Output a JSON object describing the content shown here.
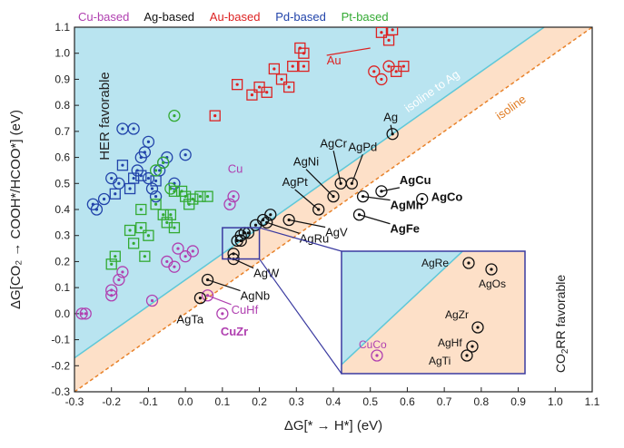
{
  "chart_data": {
    "type": "scatter",
    "xlabel": "ΔG[* → H*] (eV)",
    "ylabel": "ΔG[CO₂ → COOH*/HCOO*] (eV)",
    "xlim": [
      -0.3,
      1.1
    ],
    "ylim": [
      -0.3,
      1.1
    ],
    "xticks": [
      "-0.3",
      "-0.2",
      "-0.1",
      "0.0",
      "0.1",
      "0.2",
      "0.3",
      "0.4",
      "0.5",
      "0.6",
      "0.7",
      "0.8",
      "0.9",
      "1.0",
      "1.1"
    ],
    "yticks": [
      "-0.3",
      "-0.2",
      "-0.1",
      "0.0",
      "0.1",
      "0.2",
      "0.3",
      "0.4",
      "0.5",
      "0.6",
      "0.7",
      "0.8",
      "0.9",
      "1.0",
      "1.1"
    ],
    "legend": [
      {
        "name": "Cu-based",
        "color": "#b040b0"
      },
      {
        "name": "Ag-based",
        "color": "#111111"
      },
      {
        "name": "Au-based",
        "color": "#dd2222"
      },
      {
        "name": "Pd-based",
        "color": "#2244aa"
      },
      {
        "name": "Pt-based",
        "color": "#33aa33"
      }
    ],
    "regions": {
      "her": "HER favorable",
      "co2rr": "CO2RR favorable",
      "isoline_ag": "isoline to Ag",
      "isoline": "isoline"
    },
    "colors": {
      "her_fill": "#b9e4f0",
      "co2rr_fill": "#fde0c8",
      "isoline_ag_line": "#5fc8d8",
      "isoline_line": "#e8822a",
      "isoline_ag_text": "#ffffff",
      "isoline_text": "#e07a20",
      "inset_border": "#3a3aa0"
    },
    "series": [
      {
        "name": "Cu-based",
        "marker": "circle",
        "color": "#b040b0",
        "points": [
          [
            -0.28,
            0.0
          ],
          [
            -0.27,
            0.0
          ],
          [
            -0.2,
            0.07
          ],
          [
            -0.2,
            0.09
          ],
          [
            -0.18,
            0.13
          ],
          [
            -0.17,
            0.16
          ],
          [
            -0.09,
            0.05
          ],
          [
            -0.05,
            0.2
          ],
          [
            -0.03,
            0.18
          ],
          [
            0.0,
            0.22
          ],
          [
            0.02,
            0.24
          ],
          [
            -0.02,
            0.25
          ],
          [
            0.06,
            0.07
          ],
          [
            0.1,
            0.0
          ],
          [
            0.12,
            0.42
          ],
          [
            0.13,
            0.45
          ]
        ]
      },
      {
        "name": "Pd-based",
        "marker": "circle",
        "color": "#2244aa",
        "points": [
          [
            -0.25,
            0.42
          ],
          [
            -0.24,
            0.4
          ],
          [
            -0.22,
            0.44
          ],
          [
            -0.2,
            0.52
          ],
          [
            -0.18,
            0.5
          ],
          [
            -0.17,
            0.71
          ],
          [
            -0.14,
            0.71
          ],
          [
            -0.13,
            0.55
          ],
          [
            -0.12,
            0.6
          ],
          [
            -0.11,
            0.62
          ],
          [
            -0.1,
            0.66
          ],
          [
            -0.1,
            0.52
          ],
          [
            -0.09,
            0.48
          ],
          [
            -0.08,
            0.45
          ],
          [
            -0.07,
            0.55
          ],
          [
            -0.06,
            0.58
          ],
          [
            -0.05,
            0.6
          ],
          [
            -0.03,
            0.5
          ],
          [
            0.0,
            0.61
          ]
        ]
      },
      {
        "name": "Pd-based",
        "marker": "square",
        "color": "#2244aa",
        "points": [
          [
            -0.19,
            0.46
          ],
          [
            -0.17,
            0.57
          ],
          [
            -0.15,
            0.48
          ],
          [
            -0.14,
            0.52
          ],
          [
            -0.12,
            0.53
          ],
          [
            -0.08,
            0.51
          ]
        ]
      },
      {
        "name": "Pt-based",
        "marker": "square",
        "color": "#33aa33",
        "points": [
          [
            -0.2,
            0.19
          ],
          [
            -0.19,
            0.22
          ],
          [
            -0.15,
            0.32
          ],
          [
            -0.14,
            0.27
          ],
          [
            -0.12,
            0.4
          ],
          [
            -0.12,
            0.33
          ],
          [
            -0.11,
            0.22
          ],
          [
            -0.1,
            0.3
          ],
          [
            -0.08,
            0.42
          ],
          [
            -0.06,
            0.38
          ],
          [
            -0.05,
            0.35
          ],
          [
            -0.04,
            0.38
          ],
          [
            -0.03,
            0.33
          ],
          [
            -0.03,
            0.47
          ],
          [
            -0.01,
            0.47
          ],
          [
            0.0,
            0.45
          ],
          [
            0.01,
            0.42
          ],
          [
            0.02,
            0.44
          ],
          [
            0.04,
            0.45
          ],
          [
            0.06,
            0.45
          ]
        ]
      },
      {
        "name": "Pt-based",
        "marker": "circle",
        "color": "#33aa33",
        "points": [
          [
            -0.08,
            0.55
          ],
          [
            -0.06,
            0.58
          ],
          [
            -0.04,
            0.48
          ],
          [
            -0.03,
            0.76
          ]
        ]
      },
      {
        "name": "Au-based",
        "marker": "square",
        "color": "#dd2222",
        "points": [
          [
            0.08,
            0.76
          ],
          [
            0.14,
            0.88
          ],
          [
            0.18,
            0.84
          ],
          [
            0.2,
            0.87
          ],
          [
            0.22,
            0.85
          ],
          [
            0.24,
            0.94
          ],
          [
            0.26,
            0.9
          ],
          [
            0.28,
            0.87
          ],
          [
            0.29,
            0.95
          ],
          [
            0.31,
            1.02
          ],
          [
            0.32,
            1.0
          ],
          [
            0.32,
            0.95
          ],
          [
            0.53,
            1.08
          ],
          [
            0.55,
            1.05
          ],
          [
            0.56,
            1.09
          ],
          [
            0.57,
            0.93
          ],
          [
            0.59,
            0.95
          ]
        ]
      },
      {
        "name": "Au-based",
        "marker": "circle",
        "color": "#dd2222",
        "points": [
          [
            0.51,
            0.93
          ],
          [
            0.53,
            0.9
          ],
          [
            0.55,
            0.95
          ]
        ]
      },
      {
        "name": "Ag-based",
        "marker": "circle",
        "color": "#111111",
        "points": [
          [
            0.04,
            0.06
          ],
          [
            0.06,
            0.13
          ],
          [
            0.13,
            0.21
          ],
          [
            0.13,
            0.23
          ],
          [
            0.14,
            0.28
          ],
          [
            0.15,
            0.28
          ],
          [
            0.15,
            0.3
          ],
          [
            0.16,
            0.31
          ],
          [
            0.17,
            0.31
          ],
          [
            0.19,
            0.34
          ],
          [
            0.21,
            0.36
          ],
          [
            0.22,
            0.35
          ],
          [
            0.23,
            0.38
          ],
          [
            0.28,
            0.36
          ],
          [
            0.36,
            0.4
          ],
          [
            0.4,
            0.45
          ],
          [
            0.42,
            0.5
          ],
          [
            0.45,
            0.5
          ],
          [
            0.47,
            0.38
          ],
          [
            0.48,
            0.45
          ],
          [
            0.53,
            0.47
          ],
          [
            0.56,
            0.69
          ],
          [
            0.64,
            0.44
          ]
        ]
      }
    ],
    "annotations": [
      {
        "label": "Au",
        "color": "#dd2222",
        "bold": false,
        "x": 0.5,
        "y": 1.02
      },
      {
        "label": "Ag",
        "color": "#111111",
        "bold": false,
        "x": 0.56,
        "y": 0.69
      },
      {
        "label": "AgCr",
        "color": "#111111",
        "bold": false,
        "x": 0.42,
        "y": 0.5
      },
      {
        "label": "AgPd",
        "color": "#111111",
        "bold": false,
        "x": 0.45,
        "y": 0.5
      },
      {
        "label": "AgNi",
        "color": "#111111",
        "bold": false,
        "x": 0.4,
        "y": 0.45
      },
      {
        "label": "AgPt",
        "color": "#111111",
        "bold": false,
        "x": 0.36,
        "y": 0.4
      },
      {
        "label": "AgCu",
        "color": "#111111",
        "bold": true,
        "x": 0.53,
        "y": 0.47
      },
      {
        "label": "AgCo",
        "color": "#111111",
        "bold": true,
        "x": 0.64,
        "y": 0.44
      },
      {
        "label": "AgMn",
        "color": "#111111",
        "bold": true,
        "x": 0.48,
        "y": 0.45
      },
      {
        "label": "AgFe",
        "color": "#111111",
        "bold": true,
        "x": 0.47,
        "y": 0.38
      },
      {
        "label": "AgV",
        "color": "#111111",
        "bold": false,
        "x": 0.28,
        "y": 0.36
      },
      {
        "label": "AgRu",
        "color": "#111111",
        "bold": false,
        "x": 0.22,
        "y": 0.35
      },
      {
        "label": "AgW",
        "color": "#111111",
        "bold": false,
        "x": 0.13,
        "y": 0.21
      },
      {
        "label": "AgNb",
        "color": "#111111",
        "bold": false,
        "x": 0.06,
        "y": 0.13
      },
      {
        "label": "AgTa",
        "color": "#111111",
        "bold": false,
        "x": 0.04,
        "y": 0.06
      },
      {
        "label": "CuHf",
        "color": "#b040b0",
        "bold": false,
        "x": 0.06,
        "y": 0.07
      },
      {
        "label": "CuZr",
        "color": "#b040b0",
        "bold": true,
        "x": 0.1,
        "y": 0.0
      },
      {
        "label": "Cu",
        "color": "#b040b0",
        "bold": false,
        "x": 0.13,
        "y": 0.45
      }
    ],
    "inset": {
      "source_range": {
        "x": [
          0.1,
          0.2
        ],
        "y": [
          0.21,
          0.33
        ]
      },
      "points": [
        {
          "label": "AgRe",
          "color": "#111111"
        },
        {
          "label": "AgOs",
          "color": "#111111"
        },
        {
          "label": "AgZr",
          "color": "#111111"
        },
        {
          "label": "AgHf",
          "color": "#111111"
        },
        {
          "label": "AgTi",
          "color": "#111111"
        },
        {
          "label": "CuCo",
          "color": "#b040b0"
        }
      ]
    }
  }
}
